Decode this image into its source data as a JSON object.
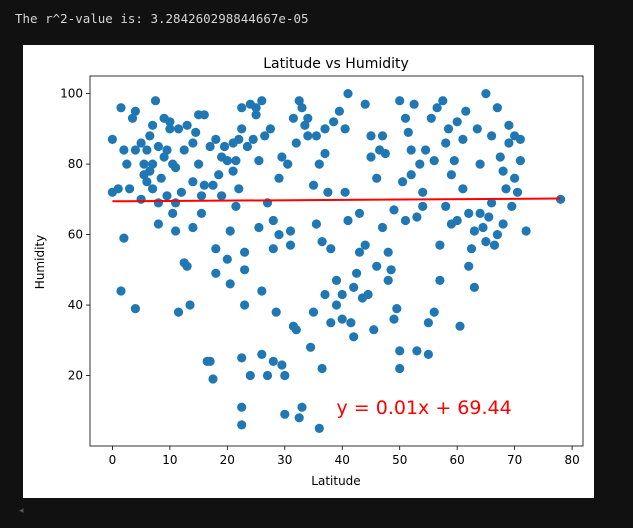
{
  "output": {
    "text": "The r^2-value is: 3.284260298844667e-05"
  },
  "scroll_indicator": "◂",
  "chart_data": {
    "type": "scatter",
    "title": "Latitude vs Humidity",
    "xlabel": "Latitude",
    "ylabel": "Humidity",
    "xlim": [
      -3.9,
      81.9
    ],
    "ylim": [
      0,
      105
    ],
    "xticks": [
      0,
      10,
      20,
      30,
      40,
      50,
      60,
      70,
      80
    ],
    "yticks": [
      20,
      40,
      60,
      80,
      100
    ],
    "grid": false,
    "colors": {
      "points": "#1f77b4",
      "regression": "#ff0000",
      "annotation": "#ff0000"
    },
    "regression": {
      "slope": 0.01,
      "intercept": 69.44,
      "x_range": [
        0,
        78
      ]
    },
    "annotation": {
      "text": "y = 0.01x + 69.44",
      "x": 39,
      "y": 11
    },
    "points": [
      [
        0,
        72
      ],
      [
        0,
        87
      ],
      [
        1,
        73
      ],
      [
        1.5,
        96
      ],
      [
        1.5,
        44
      ],
      [
        2,
        59
      ],
      [
        2,
        84
      ],
      [
        2.5,
        80
      ],
      [
        3,
        73
      ],
      [
        3.5,
        93
      ],
      [
        4,
        84
      ],
      [
        4,
        39
      ],
      [
        4,
        95
      ],
      [
        5,
        70
      ],
      [
        5,
        86
      ],
      [
        5.5,
        80
      ],
      [
        5.5,
        77
      ],
      [
        6,
        75
      ],
      [
        6,
        84
      ],
      [
        6.5,
        88
      ],
      [
        6.5,
        78
      ],
      [
        7,
        91
      ],
      [
        7,
        80
      ],
      [
        7,
        73
      ],
      [
        7.5,
        98
      ],
      [
        8,
        69
      ],
      [
        8,
        63
      ],
      [
        8,
        85
      ],
      [
        8.5,
        76
      ],
      [
        9,
        93
      ],
      [
        9,
        82
      ],
      [
        9.5,
        84
      ],
      [
        9.5,
        71
      ],
      [
        10,
        90
      ],
      [
        10,
        92
      ],
      [
        10.5,
        80
      ],
      [
        10.5,
        66
      ],
      [
        11,
        79
      ],
      [
        11,
        69
      ],
      [
        11,
        61
      ],
      [
        11.5,
        38
      ],
      [
        11.5,
        90
      ],
      [
        12,
        72
      ],
      [
        12.5,
        84
      ],
      [
        12.5,
        52
      ],
      [
        13,
        51
      ],
      [
        13,
        91
      ],
      [
        13.5,
        40
      ],
      [
        14,
        86
      ],
      [
        14,
        75
      ],
      [
        14,
        62
      ],
      [
        14.5,
        89
      ],
      [
        15,
        94
      ],
      [
        15,
        80
      ],
      [
        15.5,
        71
      ],
      [
        15.5,
        66
      ],
      [
        16,
        94
      ],
      [
        16,
        74
      ],
      [
        16.5,
        24
      ],
      [
        17,
        24
      ],
      [
        17,
        85
      ],
      [
        17.5,
        19
      ],
      [
        17.5,
        74
      ],
      [
        18,
        87
      ],
      [
        18,
        56
      ],
      [
        18,
        49
      ],
      [
        18.5,
        77
      ],
      [
        19,
        82
      ],
      [
        19,
        71
      ],
      [
        19.5,
        85
      ],
      [
        20,
        81
      ],
      [
        20,
        53
      ],
      [
        20.5,
        61
      ],
      [
        20.5,
        46
      ],
      [
        21,
        86
      ],
      [
        21,
        78
      ],
      [
        21.5,
        68
      ],
      [
        21.5,
        81
      ],
      [
        22,
        87
      ],
      [
        22,
        73
      ],
      [
        22.5,
        90
      ],
      [
        22.5,
        96
      ],
      [
        22.5,
        25
      ],
      [
        22.5,
        11
      ],
      [
        22.5,
        6
      ],
      [
        23,
        55
      ],
      [
        23,
        50
      ],
      [
        23,
        40
      ],
      [
        23.5,
        85
      ],
      [
        24,
        97
      ],
      [
        24,
        20
      ],
      [
        24.5,
        87
      ],
      [
        25,
        94
      ],
      [
        25,
        96
      ],
      [
        25.5,
        81
      ],
      [
        25.5,
        62
      ],
      [
        26,
        98
      ],
      [
        26,
        44
      ],
      [
        26,
        26
      ],
      [
        26.5,
        88
      ],
      [
        27,
        69
      ],
      [
        27,
        20
      ],
      [
        27.5,
        90
      ],
      [
        28,
        24
      ],
      [
        28,
        64
      ],
      [
        28,
        56
      ],
      [
        28.5,
        38
      ],
      [
        29,
        60
      ],
      [
        29,
        76
      ],
      [
        29.5,
        82
      ],
      [
        29.5,
        23
      ],
      [
        30,
        20
      ],
      [
        30,
        9
      ],
      [
        30.5,
        80
      ],
      [
        31,
        57
      ],
      [
        31,
        61
      ],
      [
        31.5,
        93
      ],
      [
        31.5,
        34
      ],
      [
        32,
        33
      ],
      [
        32,
        86
      ],
      [
        32.5,
        98
      ],
      [
        32.5,
        8
      ],
      [
        33,
        96
      ],
      [
        33,
        11
      ],
      [
        33.5,
        91
      ],
      [
        34,
        88
      ],
      [
        34,
        93
      ],
      [
        34.5,
        28
      ],
      [
        35,
        38
      ],
      [
        35,
        74
      ],
      [
        35.5,
        88
      ],
      [
        35.5,
        63
      ],
      [
        36,
        80
      ],
      [
        36,
        5
      ],
      [
        36.5,
        58
      ],
      [
        36.5,
        22
      ],
      [
        37,
        43
      ],
      [
        37,
        90
      ],
      [
        37,
        83
      ],
      [
        37.5,
        72
      ],
      [
        38,
        56
      ],
      [
        38,
        35
      ],
      [
        38.5,
        92
      ],
      [
        39,
        47
      ],
      [
        39,
        40
      ],
      [
        39.5,
        95
      ],
      [
        40,
        36
      ],
      [
        40,
        43
      ],
      [
        40.5,
        90
      ],
      [
        40.5,
        72
      ],
      [
        41,
        100
      ],
      [
        41,
        64
      ],
      [
        41.5,
        35
      ],
      [
        42,
        45
      ],
      [
        42,
        31
      ],
      [
        42.5,
        49
      ],
      [
        43,
        55
      ],
      [
        43,
        66
      ],
      [
        43.5,
        42
      ],
      [
        44,
        97
      ],
      [
        44,
        57
      ],
      [
        44.5,
        43
      ],
      [
        45,
        88
      ],
      [
        45,
        82
      ],
      [
        45.5,
        33
      ],
      [
        46,
        51
      ],
      [
        46,
        76
      ],
      [
        46.5,
        84
      ],
      [
        47,
        88
      ],
      [
        47,
        62
      ],
      [
        47.5,
        83
      ],
      [
        48,
        55
      ],
      [
        48,
        47
      ],
      [
        48.5,
        50
      ],
      [
        49,
        36
      ],
      [
        49,
        67
      ],
      [
        49.5,
        39
      ],
      [
        50,
        98
      ],
      [
        50,
        27
      ],
      [
        50,
        22
      ],
      [
        50.5,
        75
      ],
      [
        51,
        93
      ],
      [
        51,
        64
      ],
      [
        51.5,
        89
      ],
      [
        52,
        84
      ],
      [
        52,
        77
      ],
      [
        52.5,
        97
      ],
      [
        53,
        65
      ],
      [
        53,
        27
      ],
      [
        53.5,
        80
      ],
      [
        54,
        68
      ],
      [
        54,
        72
      ],
      [
        54.5,
        84
      ],
      [
        55,
        26
      ],
      [
        55,
        35
      ],
      [
        55.5,
        93
      ],
      [
        56,
        81
      ],
      [
        56,
        38
      ],
      [
        56.5,
        96
      ],
      [
        57,
        57
      ],
      [
        57,
        47
      ],
      [
        57.5,
        98
      ],
      [
        58,
        86
      ],
      [
        58,
        68
      ],
      [
        58.5,
        90
      ],
      [
        59,
        77
      ],
      [
        59,
        63
      ],
      [
        59.5,
        81
      ],
      [
        60,
        64
      ],
      [
        60,
        92
      ],
      [
        60.5,
        34
      ],
      [
        61,
        87
      ],
      [
        61,
        73
      ],
      [
        61.5,
        95
      ],
      [
        62,
        51
      ],
      [
        62,
        66
      ],
      [
        62.5,
        56
      ],
      [
        63,
        61
      ],
      [
        63,
        45
      ],
      [
        63.5,
        90
      ],
      [
        64,
        80
      ],
      [
        64,
        66
      ],
      [
        64.5,
        62
      ],
      [
        65,
        100
      ],
      [
        65,
        58
      ],
      [
        65.5,
        65
      ],
      [
        66,
        69
      ],
      [
        66,
        88
      ],
      [
        66.5,
        57
      ],
      [
        67,
        96
      ],
      [
        67,
        60
      ],
      [
        67.5,
        82
      ],
      [
        68,
        78
      ],
      [
        68,
        63
      ],
      [
        68.5,
        73
      ],
      [
        69,
        91
      ],
      [
        69,
        86
      ],
      [
        69.5,
        68
      ],
      [
        70,
        88
      ],
      [
        70,
        76
      ],
      [
        70.5,
        72
      ],
      [
        71,
        87
      ],
      [
        71,
        81
      ],
      [
        72,
        61
      ],
      [
        78,
        70
      ]
    ]
  }
}
